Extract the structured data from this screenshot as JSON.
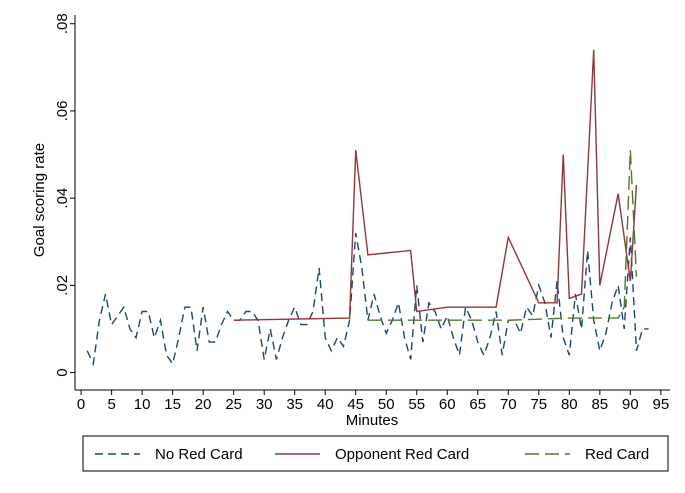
{
  "chart_data": {
    "type": "line",
    "y_label": "Goal scoring rate",
    "x_label": "Minutes",
    "xlim": [
      -1,
      96.5
    ],
    "ylim": [
      -0.004,
      0.082
    ],
    "xticks": [
      0,
      5,
      10,
      15,
      20,
      25,
      30,
      35,
      40,
      45,
      50,
      55,
      60,
      65,
      70,
      75,
      80,
      85,
      90,
      95
    ],
    "yticks": [
      0,
      {
        "value": 0.02,
        "label": ".02"
      },
      {
        "value": 0.04,
        "label": ".04"
      },
      {
        "value": 0.06,
        "label": ".06"
      },
      {
        "value": 0.08,
        "label": ".08"
      }
    ],
    "series": [
      {
        "name": "No Red Card",
        "color": "#1a476f",
        "dash": "8,5",
        "x": [
          1,
          2,
          3,
          4,
          5,
          6,
          7,
          8,
          9,
          10,
          11,
          12,
          13,
          14,
          15,
          16,
          17,
          18,
          19,
          20,
          21,
          22,
          23,
          24,
          25,
          26,
          27,
          28,
          29,
          30,
          31,
          32,
          33,
          34,
          35,
          36,
          37,
          38,
          39,
          40,
          41,
          42,
          43,
          44,
          45,
          46,
          47,
          48,
          49,
          50,
          51,
          52,
          53,
          54,
          55,
          56,
          57,
          58,
          59,
          60,
          61,
          62,
          63,
          64,
          65,
          66,
          67,
          68,
          69,
          70,
          71,
          72,
          73,
          74,
          75,
          76,
          77,
          78,
          79,
          80,
          81,
          82,
          83,
          84,
          85,
          86,
          87,
          88,
          89,
          90,
          91,
          92,
          93
        ],
        "values": [
          0.005,
          0.002,
          0.012,
          0.018,
          0.011,
          0.013,
          0.015,
          0.01,
          0.008,
          0.014,
          0.014,
          0.008,
          0.012,
          0.004,
          0.002,
          0.008,
          0.015,
          0.015,
          0.005,
          0.015,
          0.007,
          0.007,
          0.011,
          0.014,
          0.012,
          0.012,
          0.014,
          0.014,
          0.012,
          0.003,
          0.01,
          0.003,
          0.008,
          0.012,
          0.015,
          0.011,
          0.011,
          0.014,
          0.024,
          0.008,
          0.005,
          0.008,
          0.006,
          0.012,
          0.032,
          0.024,
          0.012,
          0.018,
          0.013,
          0.009,
          0.012,
          0.016,
          0.008,
          0.003,
          0.02,
          0.007,
          0.016,
          0.014,
          0.01,
          0.013,
          0.008,
          0.004,
          0.015,
          0.012,
          0.007,
          0.004,
          0.008,
          0.014,
          0.004,
          0.012,
          0.012,
          0.009,
          0.015,
          0.013,
          0.02,
          0.016,
          0.008,
          0.021,
          0.008,
          0.004,
          0.018,
          0.01,
          0.028,
          0.012,
          0.005,
          0.009,
          0.016,
          0.02,
          0.01,
          0.031,
          0.005,
          0.01,
          0.01
        ]
      },
      {
        "name": "Opponent Red Card",
        "color": "#90353b",
        "dash": "none",
        "x": [
          25,
          44,
          45,
          47,
          54,
          55,
          60,
          68,
          70,
          75,
          78,
          79,
          80,
          82,
          84,
          85,
          88,
          90,
          91
        ],
        "values": [
          0.012,
          0.0125,
          0.051,
          0.027,
          0.028,
          0.014,
          0.015,
          0.015,
          0.031,
          0.016,
          0.016,
          0.05,
          0.017,
          0.018,
          0.074,
          0.02,
          0.041,
          0.021,
          0.043
        ]
      },
      {
        "name": "Red Card",
        "color": "#55752f",
        "dash": "14,6",
        "x": [
          47,
          60,
          70,
          80,
          88,
          89,
          90,
          91
        ],
        "values": [
          0.012,
          0.012,
          0.012,
          0.0125,
          0.0125,
          0.015,
          0.051,
          0.022
        ]
      }
    ]
  }
}
